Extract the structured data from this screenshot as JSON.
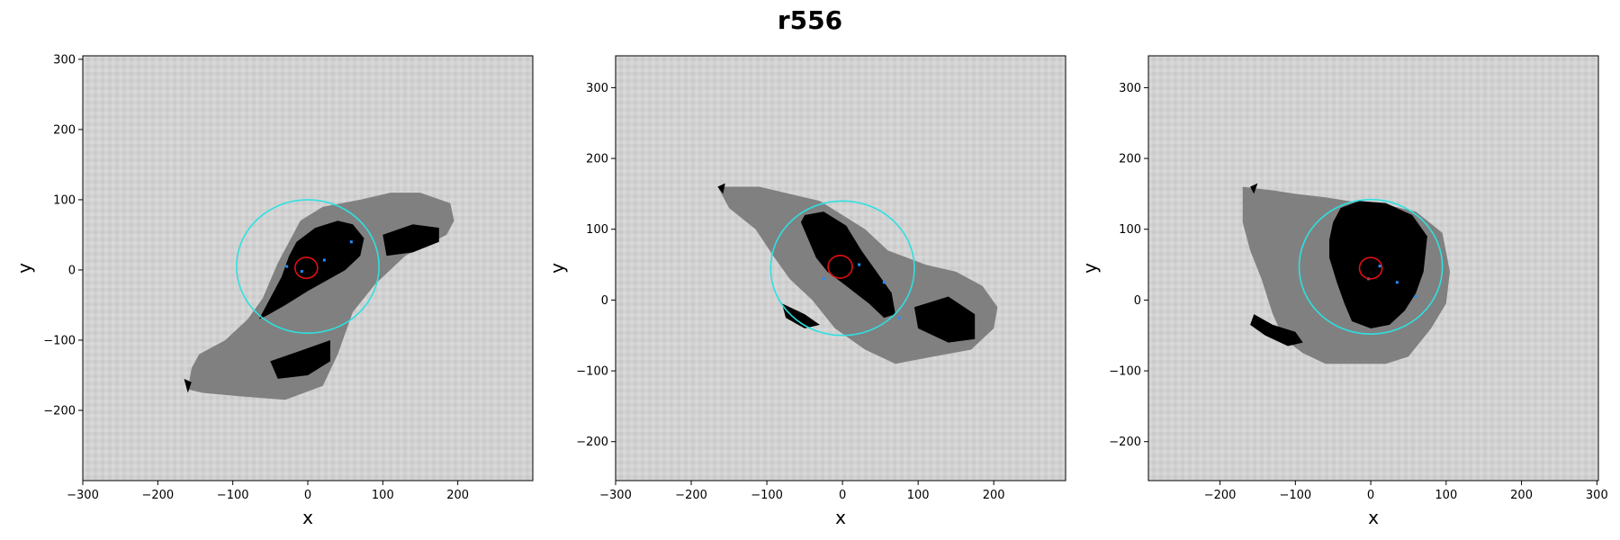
{
  "figure": {
    "title": "r556"
  },
  "panels": [
    {
      "xlabel": "x",
      "ylabel": "y",
      "xlim": [
        -300,
        300
      ],
      "ylim": [
        -300,
        305
      ],
      "xticks": [
        -300,
        -200,
        -100,
        0,
        100,
        200
      ],
      "yticks": [
        -200,
        -100,
        0,
        100,
        200,
        300
      ],
      "cyan_circle": {
        "cx": 0,
        "cy": 5,
        "r": 95
      },
      "red_circle": {
        "cx": -2,
        "cy": 3,
        "r": 15
      },
      "gray_region": [
        [
          -160,
          -170
        ],
        [
          -155,
          -140
        ],
        [
          -145,
          -120
        ],
        [
          -110,
          -100
        ],
        [
          -80,
          -70
        ],
        [
          -60,
          -40
        ],
        [
          -40,
          10
        ],
        [
          -25,
          40
        ],
        [
          -10,
          70
        ],
        [
          20,
          90
        ],
        [
          70,
          100
        ],
        [
          110,
          110
        ],
        [
          150,
          110
        ],
        [
          190,
          95
        ],
        [
          195,
          70
        ],
        [
          185,
          50
        ],
        [
          130,
          20
        ],
        [
          90,
          -20
        ],
        [
          60,
          -60
        ],
        [
          40,
          -120
        ],
        [
          20,
          -165
        ],
        [
          -30,
          -185
        ],
        [
          -90,
          -180
        ],
        [
          -140,
          -175
        ]
      ],
      "black_region": [
        [
          -65,
          -70
        ],
        [
          -50,
          -40
        ],
        [
          -35,
          -10
        ],
        [
          -25,
          20
        ],
        [
          -15,
          40
        ],
        [
          10,
          60
        ],
        [
          40,
          70
        ],
        [
          60,
          65
        ],
        [
          75,
          45
        ],
        [
          70,
          20
        ],
        [
          50,
          0
        ],
        [
          25,
          -15
        ],
        [
          0,
          -30
        ],
        [
          -30,
          -50
        ],
        [
          -55,
          -65
        ]
      ],
      "black_extra": [
        [
          [
            100,
            50
          ],
          [
            140,
            65
          ],
          [
            175,
            60
          ],
          [
            175,
            40
          ],
          [
            140,
            25
          ],
          [
            105,
            20
          ]
        ],
        [
          [
            -50,
            -130
          ],
          [
            -10,
            -115
          ],
          [
            30,
            -100
          ],
          [
            30,
            -130
          ],
          [
            0,
            -150
          ],
          [
            -40,
            -155
          ]
        ],
        [
          [
            -165,
            -155
          ],
          [
            -155,
            -160
          ],
          [
            -160,
            -175
          ]
        ]
      ],
      "cyan_points": [
        [
          58,
          40
        ],
        [
          22,
          14
        ],
        [
          -28,
          5
        ],
        [
          -8,
          -2
        ]
      ],
      "colors": {
        "gray": "#808080",
        "black": "#000000",
        "cyan": "#2ee0e0",
        "red": "#e01010",
        "point": "#1e90ff",
        "background": "#d2d2d2"
      }
    },
    {
      "xlabel": "x",
      "ylabel": "y",
      "xlim": [
        -300,
        295
      ],
      "ylim": [
        -255,
        345
      ],
      "xticks": [
        -300,
        -200,
        -100,
        0,
        100,
        200
      ],
      "yticks": [
        -200,
        -100,
        0,
        100,
        200,
        300
      ],
      "cyan_circle": {
        "cx": 0,
        "cy": 45,
        "r": 95
      },
      "red_circle": {
        "cx": -3,
        "cy": 47,
        "r": 16
      },
      "gray_region": [
        [
          -165,
          160
        ],
        [
          -150,
          130
        ],
        [
          -115,
          100
        ],
        [
          -90,
          60
        ],
        [
          -70,
          30
        ],
        [
          -40,
          0
        ],
        [
          -10,
          -40
        ],
        [
          30,
          -70
        ],
        [
          70,
          -90
        ],
        [
          120,
          -80
        ],
        [
          170,
          -70
        ],
        [
          200,
          -40
        ],
        [
          205,
          -10
        ],
        [
          185,
          20
        ],
        [
          150,
          40
        ],
        [
          110,
          50
        ],
        [
          60,
          70
        ],
        [
          30,
          100
        ],
        [
          0,
          120
        ],
        [
          -30,
          140
        ],
        [
          -70,
          150
        ],
        [
          -110,
          160
        ],
        [
          -150,
          160
        ]
      ],
      "black_region": [
        [
          -55,
          110
        ],
        [
          -45,
          85
        ],
        [
          -35,
          60
        ],
        [
          -20,
          40
        ],
        [
          5,
          20
        ],
        [
          35,
          -5
        ],
        [
          55,
          -25
        ],
        [
          70,
          -20
        ],
        [
          65,
          10
        ],
        [
          45,
          40
        ],
        [
          25,
          70
        ],
        [
          5,
          105
        ],
        [
          -25,
          125
        ],
        [
          -50,
          120
        ]
      ],
      "black_extra": [
        [
          [
            95,
            -10
          ],
          [
            140,
            5
          ],
          [
            175,
            -20
          ],
          [
            175,
            -55
          ],
          [
            140,
            -60
          ],
          [
            100,
            -40
          ]
        ],
        [
          [
            -80,
            -5
          ],
          [
            -50,
            -20
          ],
          [
            -30,
            -35
          ],
          [
            -50,
            -40
          ],
          [
            -75,
            -25
          ]
        ],
        [
          [
            -165,
            160
          ],
          [
            -155,
            165
          ],
          [
            -158,
            150
          ]
        ]
      ],
      "cyan_points": [
        [
          22,
          50
        ],
        [
          -25,
          30
        ],
        [
          55,
          25
        ],
        [
          75,
          -25
        ]
      ],
      "colors": {
        "gray": "#808080",
        "black": "#000000",
        "cyan": "#2ee0e0",
        "red": "#e01010",
        "point": "#1e90ff",
        "background": "#d2d2d2"
      }
    },
    {
      "xlabel": "x",
      "ylabel": "y",
      "xlim": [
        -295,
        302
      ],
      "ylim": [
        -255,
        345
      ],
      "xticks": [
        -200,
        -100,
        0,
        100,
        200,
        300
      ],
      "yticks": [
        -200,
        -100,
        0,
        100,
        200,
        300
      ],
      "cyan_circle": {
        "cx": 0,
        "cy": 47,
        "r": 95
      },
      "red_circle": {
        "cx": 0,
        "cy": 45,
        "r": 15
      },
      "gray_region": [
        [
          -170,
          160
        ],
        [
          -130,
          155
        ],
        [
          -100,
          150
        ],
        [
          -60,
          145
        ],
        [
          -30,
          140
        ],
        [
          20,
          135
        ],
        [
          60,
          125
        ],
        [
          95,
          95
        ],
        [
          105,
          40
        ],
        [
          100,
          -5
        ],
        [
          80,
          -40
        ],
        [
          50,
          -80
        ],
        [
          20,
          -90
        ],
        [
          -20,
          -90
        ],
        [
          -60,
          -90
        ],
        [
          -90,
          -75
        ],
        [
          -115,
          -55
        ],
        [
          -130,
          -20
        ],
        [
          -145,
          30
        ],
        [
          -160,
          70
        ],
        [
          -170,
          110
        ]
      ],
      "black_region": [
        [
          -50,
          110
        ],
        [
          -40,
          130
        ],
        [
          -15,
          140
        ],
        [
          20,
          137
        ],
        [
          55,
          120
        ],
        [
          75,
          90
        ],
        [
          70,
          40
        ],
        [
          60,
          10
        ],
        [
          45,
          -15
        ],
        [
          25,
          -35
        ],
        [
          0,
          -40
        ],
        [
          -25,
          -30
        ],
        [
          -35,
          -5
        ],
        [
          -45,
          25
        ],
        [
          -55,
          60
        ],
        [
          -55,
          85
        ]
      ],
      "black_extra": [
        [
          [
            -155,
            -20
          ],
          [
            -130,
            -35
          ],
          [
            -100,
            -45
          ],
          [
            -90,
            -60
          ],
          [
            -110,
            -65
          ],
          [
            -140,
            -50
          ],
          [
            -160,
            -35
          ]
        ],
        [
          [
            -160,
            160
          ],
          [
            -150,
            165
          ],
          [
            -155,
            150
          ]
        ]
      ],
      "cyan_points": [
        [
          12,
          48
        ],
        [
          35,
          25
        ],
        [
          60,
          5
        ],
        [
          -3,
          30
        ]
      ],
      "colors": {
        "gray": "#808080",
        "black": "#000000",
        "cyan": "#2ee0e0",
        "red": "#e01010",
        "point": "#1e90ff",
        "background": "#d2d2d2"
      }
    }
  ]
}
